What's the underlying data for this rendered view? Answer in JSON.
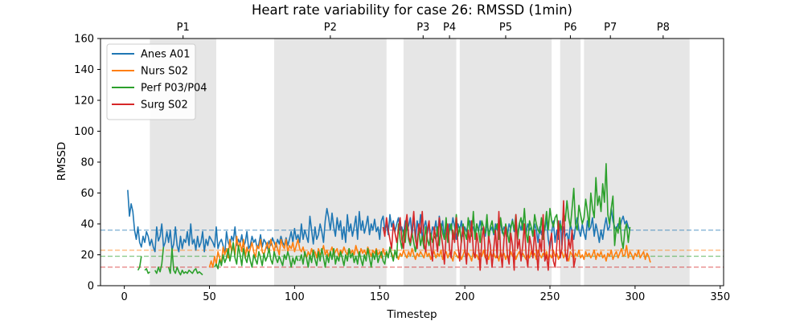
{
  "chart_data": {
    "type": "line",
    "title": "Heart rate variability for case 26: RMSSD (1min)",
    "xlabel": "Timestep",
    "ylabel": "RMSSD",
    "xlim": [
      -14,
      352
    ],
    "ylim": [
      0,
      160
    ],
    "x_ticks": [
      0,
      50,
      100,
      150,
      200,
      250,
      300,
      350
    ],
    "y_ticks": [
      0,
      20,
      40,
      60,
      80,
      100,
      120,
      140,
      160
    ],
    "grid": false,
    "legend_position": "top-left",
    "phases": [
      {
        "label": "P1",
        "start": 15,
        "end": 54
      },
      {
        "label": "P2",
        "start": 88,
        "end": 154
      },
      {
        "label": "P3",
        "start": 164,
        "end": 187
      },
      {
        "label": "P4",
        "start": 187,
        "end": 195
      },
      {
        "label": "P5",
        "start": 197,
        "end": 251
      },
      {
        "label": "P6",
        "start": 256,
        "end": 268
      },
      {
        "label": "P7",
        "start": 270,
        "end": 301
      },
      {
        "label": "P8",
        "start": 301,
        "end": 332
      }
    ],
    "series": [
      {
        "name": "Anes A01",
        "color": "#1f77b4",
        "baseline": 36,
        "segments": [
          {
            "start": 2,
            "values": [
              62,
              45,
              53,
              48,
              36,
              30,
              38,
              28,
              25,
              32,
              28,
              35,
              32,
              26,
              30,
              25,
              22,
              38,
              29,
              32,
              40,
              25,
              28,
              35,
              28,
              36,
              23,
              27,
              38,
              26,
              22,
              32,
              24,
              30,
              28,
              35,
              26,
              40,
              27,
              30,
              23,
              32,
              25,
              28,
              35,
              22,
              30,
              26,
              32,
              30,
              28,
              25,
              38,
              24,
              28,
              30,
              26,
              20,
              35,
              28,
              25,
              32,
              29,
              38,
              26,
              30,
              27,
              33,
              25,
              28,
              35,
              24,
              26,
              32,
              28,
              30,
              24,
              27,
              33,
              25,
              30,
              28,
              24,
              29,
              26,
              31,
              28,
              25,
              30,
              27,
              32,
              28,
              26,
              31,
              26,
              30,
              35,
              28,
              37,
              30,
              33,
              28,
              40,
              30,
              36,
              32,
              28,
              45,
              36,
              27,
              38,
              30,
              33,
              40,
              35,
              28,
              42,
              50,
              44,
              36,
              47,
              38,
              32,
              44,
              36,
              42,
              30,
              38,
              28,
              46,
              35,
              40,
              32,
              38,
              45,
              30,
              48,
              36,
              42,
              34,
              39,
              45,
              33,
              40,
              36,
              43,
              35,
              38,
              30,
              42,
              45,
              36,
              40,
              33,
              46,
              38,
              42,
              35,
              40,
              44,
              36,
              38,
              33,
              42,
              36,
              39,
              44,
              32,
              45,
              30,
              42,
              35,
              46,
              30,
              38,
              42,
              34,
              40,
              30,
              38,
              35,
              42,
              32,
              45,
              36,
              42,
              30,
              38,
              33,
              40,
              36,
              44,
              38,
              30,
              40,
              36,
              42,
              32,
              38,
              35,
              40,
              42,
              36,
              38,
              33,
              40,
              35,
              42,
              36,
              38,
              32,
              40,
              35,
              36,
              38,
              33,
              40,
              36,
              38,
              42,
              34,
              38,
              36,
              32,
              40,
              37,
              43,
              35,
              39,
              33,
              40,
              36,
              42,
              38,
              34,
              40,
              36,
              38,
              32,
              40,
              36,
              28,
              38,
              33,
              40,
              36,
              44,
              30,
              24,
              34,
              42,
              28,
              36,
              30,
              42,
              26,
              38,
              32,
              34,
              28,
              40,
              35,
              30,
              38,
              44,
              36,
              32,
              40,
              34,
              30,
              42,
              36,
              38,
              44,
              32,
              40,
              35,
              28,
              36,
              30,
              38,
              44,
              36,
              38,
              50,
              42,
              38,
              36,
              40,
              37,
              42,
              45,
              40,
              42,
              38,
              36
            ]
          }
        ]
      },
      {
        "name": "Nurs S02",
        "color": "#ff7f0e",
        "baseline": 23,
        "segments": [
          {
            "start": 50,
            "values": [
              12,
              16,
              12,
              19,
              14,
              22,
              18,
              14,
              25,
              20,
              24,
              18,
              30,
              22,
              26,
              20,
              32,
              24,
              28,
              22,
              30,
              18,
              25,
              20,
              24,
              28,
              22,
              18,
              26,
              24,
              30,
              22,
              20,
              24,
              28,
              22,
              30,
              26,
              22,
              28,
              24,
              20,
              30,
              26,
              24,
              30,
              22,
              26,
              24,
              28,
              22,
              26,
              30,
              24,
              22,
              25,
              20,
              18,
              22,
              19,
              24,
              20,
              22,
              18,
              24,
              20,
              22,
              26,
              20,
              23,
              19,
              22,
              25,
              20,
              22,
              24,
              19,
              23,
              21,
              25,
              22,
              20,
              24,
              21,
              23,
              20,
              26,
              22,
              19,
              24,
              21,
              23,
              20,
              25,
              22,
              19,
              23,
              21,
              24,
              20,
              22,
              18,
              24,
              20,
              22,
              19,
              23,
              21,
              18,
              22,
              20,
              17,
              21,
              19,
              23,
              20,
              18,
              22,
              19,
              24,
              20,
              17,
              21,
              19,
              22,
              20,
              18,
              23,
              19,
              21,
              17,
              20,
              22,
              18,
              21,
              19,
              23,
              17,
              20,
              22,
              18,
              21,
              19,
              16,
              22,
              20,
              18,
              21,
              17,
              20,
              23,
              18,
              21,
              19,
              16,
              22,
              18,
              20,
              17,
              21,
              19,
              23,
              18,
              20,
              17,
              22,
              19,
              21,
              18,
              20,
              16,
              22,
              19,
              21,
              17,
              20,
              18,
              22,
              19,
              21,
              17,
              20,
              22,
              18,
              21,
              19,
              17,
              20,
              18,
              22,
              19,
              21,
              17,
              23,
              20,
              18,
              21,
              19,
              22,
              17,
              20,
              18,
              23,
              19,
              21,
              17,
              20,
              22,
              18,
              21,
              19,
              16,
              22,
              20,
              17,
              21,
              19,
              23,
              18,
              20,
              17,
              22,
              19,
              21,
              18,
              20,
              23,
              17,
              21,
              19,
              22,
              18,
              20,
              16,
              21,
              19,
              23,
              17,
              20,
              22,
              18,
              21,
              24,
              19,
              20,
              26,
              18,
              22,
              20,
              17,
              21,
              19,
              23,
              18,
              20,
              22,
              17,
              21,
              19,
              15
            ]
          }
        ]
      },
      {
        "name": "Perf P03/P04",
        "color": "#2ca02c",
        "baseline": 19,
        "segments": [
          {
            "start": 8,
            "values": [
              10,
              12,
              19
            ]
          },
          {
            "start": 12,
            "values": [
              10,
              11,
              8,
              9
            ]
          },
          {
            "start": 18,
            "values": [
              10,
              8,
              12,
              9,
              14,
              25
            ]
          },
          {
            "start": 26,
            "values": [
              12,
              8,
              24,
              10,
              8,
              12,
              9,
              7,
              10,
              8,
              9,
              8,
              10,
              9,
              8,
              10,
              11,
              8,
              9,
              8,
              7
            ]
          },
          {
            "start": 53,
            "values": [
              12,
              14,
              11,
              17,
              13,
              20,
              15,
              18,
              24,
              16,
              22,
              28,
              18,
              14,
              26,
              20,
              13,
              24,
              18,
              15,
              22,
              16,
              12,
              20,
              17,
              14,
              22,
              18,
              13,
              21,
              16,
              19,
              24,
              17,
              14,
              22,
              18,
              15,
              19,
              16,
              13,
              20,
              17,
              22,
              18,
              12,
              18,
              14,
              19,
              16
            ]
          },
          {
            "start": 103,
            "values": [
              16,
              20,
              14,
              22,
              18,
              12,
              20,
              15,
              23,
              17,
              13,
              22,
              16,
              24,
              18,
              12,
              20,
              15,
              22,
              17,
              24,
              14,
              19,
              16,
              22,
              18,
              13,
              20,
              16,
              24,
              18,
              21,
              15,
              19,
              14,
              22,
              17,
              13,
              20,
              16,
              24,
              18,
              12,
              21,
              17,
              23,
              15,
              19,
              22,
              16,
              14,
              22,
              18,
              25,
              20,
              16,
              23,
              18,
              40,
              30,
              24,
              36,
              28,
              42,
              30,
              26,
              34,
              28,
              22,
              30,
              36,
              26,
              32,
              24,
              38,
              30,
              26,
              34,
              28,
              32,
              30,
              38,
              26,
              40,
              34,
              30,
              44,
              28,
              36,
              40,
              30,
              34,
              46,
              32,
              38,
              28,
              40,
              34,
              30,
              44,
              36,
              32,
              48,
              30,
              40,
              36,
              28,
              42,
              38,
              34,
              46,
              30,
              38,
              42,
              34,
              36,
              40,
              30,
              44,
              36,
              32,
              40,
              34,
              28,
              38,
              42,
              36,
              46,
              30,
              40,
              44,
              36,
              50,
              34,
              28,
              42,
              38,
              32,
              46,
              40,
              36,
              34,
              44,
              30,
              38,
              48,
              36,
              50,
              42,
              38,
              44,
              46,
              34,
              40,
              36,
              48,
              42,
              55,
              44,
              38,
              50,
              63,
              40,
              36,
              52,
              46,
              40,
              44,
              56,
              48,
              38,
              60,
              50,
              44,
              70,
              52,
              58,
              48,
              66,
              54,
              79,
              46,
              40,
              50,
              58,
              26,
              38,
              34,
              44,
              30,
              24,
              36,
              40,
              28,
              38
            ]
          }
        ]
      },
      {
        "name": "Surg S02",
        "color": "#d62728",
        "baseline": 12,
        "segments": [
          {
            "start": 152,
            "values": [
              38,
              32,
              44,
              36,
              30,
              24,
              40,
              34,
              28,
              36,
              44,
              30,
              24,
              38,
              46,
              32,
              28,
              36,
              48,
              30,
              24,
              40,
              34,
              48,
              28,
              22,
              36,
              42,
              26,
              16,
              38,
              30,
              22,
              44,
              34,
              26,
              14,
              32,
              40,
              24,
              18,
              36,
              28,
              44,
              26,
              16,
              30,
              38,
              24,
              14,
              36,
              28,
              42,
              22,
              18,
              34,
              26,
              10,
              30,
              38,
              20,
              14,
              32,
              26,
              12,
              24,
              36,
              18,
              48,
              22,
              12,
              30,
              38,
              20,
              14,
              34,
              26,
              10,
              46,
              24,
              30,
              16,
              26,
              40,
              20,
              12,
              32,
              26,
              18,
              36,
              24,
              10,
              30,
              22,
              46,
              16,
              20,
              10,
              28,
              34,
              16,
              12,
              26,
              42,
              18,
              24,
              55,
              22,
              16,
              30,
              24,
              36,
              12,
              18
            ]
          }
        ]
      }
    ]
  }
}
